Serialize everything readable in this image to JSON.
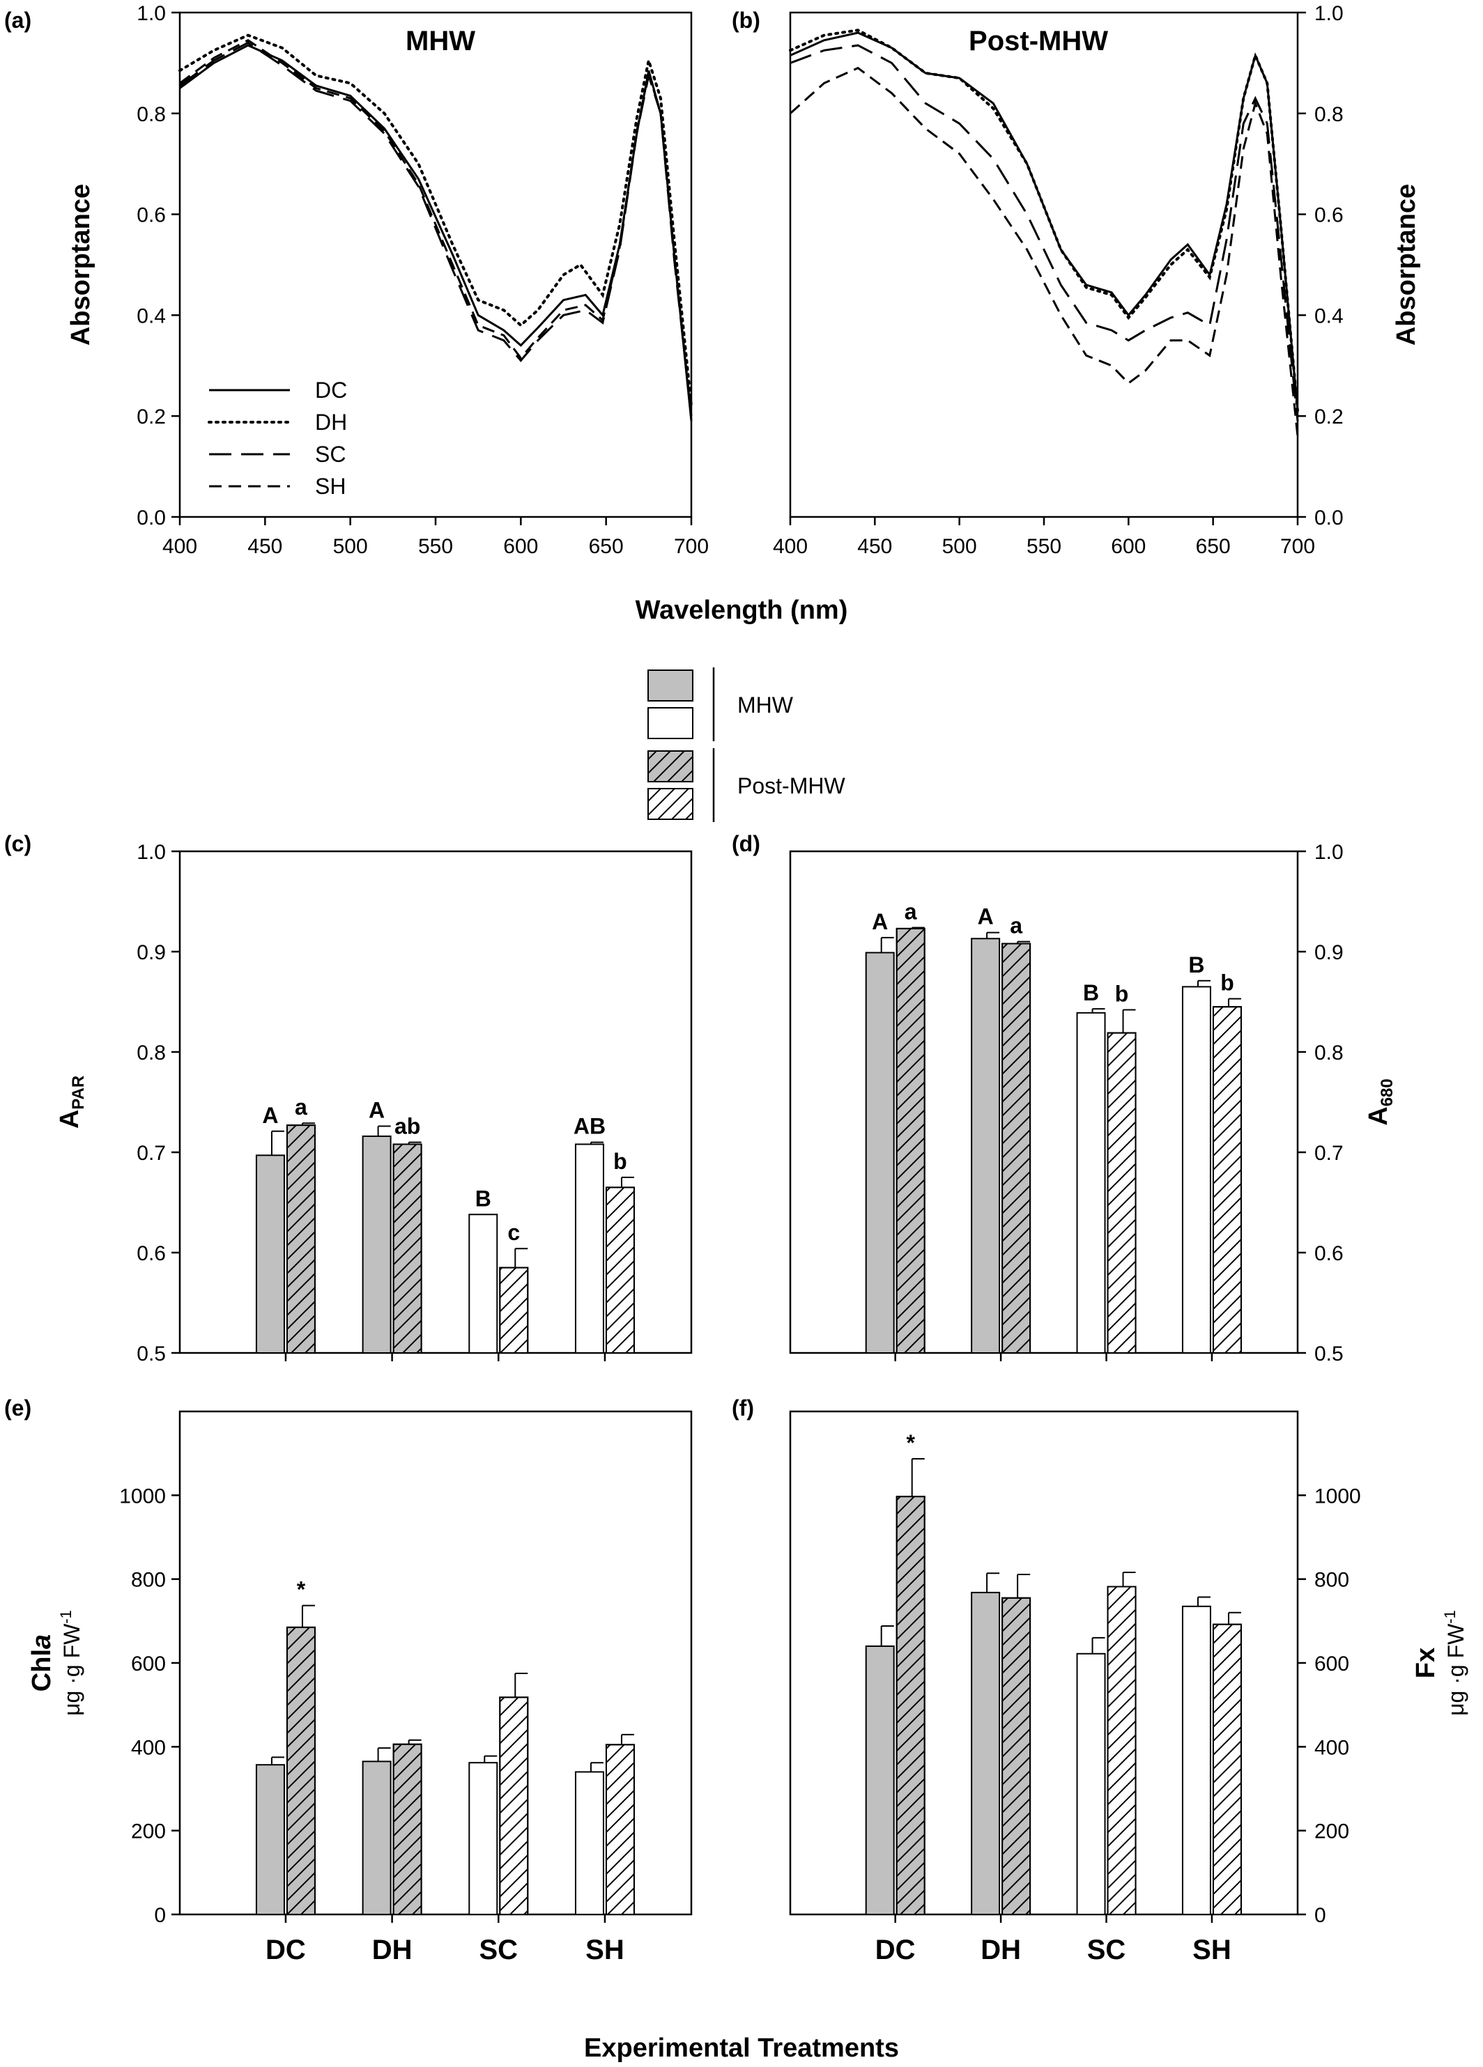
{
  "shared": {
    "spectra_xlabel": "Wavelength (nm)",
    "bars_xlabel": "Experimental Treatments",
    "categories": [
      "DC",
      "DH",
      "SC",
      "SH"
    ]
  },
  "bar_legend": {
    "groups": [
      {
        "label": "MHW",
        "swatches": [
          {
            "fill": "#c0c0c0",
            "hatched": false
          },
          {
            "fill": "#ffffff",
            "hatched": false
          }
        ]
      },
      {
        "label": "Post-MHW",
        "swatches": [
          {
            "fill": "#c0c0c0",
            "hatched": true
          },
          {
            "fill": "#ffffff",
            "hatched": true
          }
        ]
      }
    ]
  },
  "colors": {
    "dry_fill": "#c0c0c0",
    "submerged_fill": "#ffffff",
    "line": "#000000"
  },
  "chart_data": [
    {
      "panel": "(a)",
      "type": "line",
      "title": "MHW",
      "xlabel": "",
      "ylabel": "Absorptance",
      "yaxis_side": "left",
      "xlim": [
        400,
        700
      ],
      "ylim": [
        0,
        1.0
      ],
      "xticks": [
        400,
        450,
        500,
        550,
        600,
        650,
        700
      ],
      "yticks": [
        0.0,
        0.2,
        0.4,
        0.6,
        0.8,
        1.0
      ],
      "legend": {
        "position": "bottom-left",
        "entries": [
          "DC",
          "DH",
          "SC",
          "SH"
        ]
      },
      "series": [
        {
          "name": "DC",
          "dash": "solid",
          "points": [
            [
              400,
              0.85
            ],
            [
              420,
              0.9
            ],
            [
              440,
              0.935
            ],
            [
              460,
              0.905
            ],
            [
              480,
              0.855
            ],
            [
              500,
              0.835
            ],
            [
              520,
              0.77
            ],
            [
              540,
              0.67
            ],
            [
              560,
              0.52
            ],
            [
              575,
              0.4
            ],
            [
              590,
              0.37
            ],
            [
              600,
              0.34
            ],
            [
              610,
              0.375
            ],
            [
              625,
              0.43
            ],
            [
              638,
              0.44
            ],
            [
              648,
              0.4
            ],
            [
              658,
              0.54
            ],
            [
              668,
              0.76
            ],
            [
              675,
              0.885
            ],
            [
              682,
              0.8
            ],
            [
              690,
              0.52
            ],
            [
              700,
              0.19
            ]
          ]
        },
        {
          "name": "DH",
          "dash": "dotted",
          "points": [
            [
              400,
              0.885
            ],
            [
              420,
              0.925
            ],
            [
              440,
              0.955
            ],
            [
              460,
              0.93
            ],
            [
              480,
              0.875
            ],
            [
              500,
              0.86
            ],
            [
              520,
              0.8
            ],
            [
              540,
              0.7
            ],
            [
              560,
              0.54
            ],
            [
              575,
              0.43
            ],
            [
              590,
              0.41
            ],
            [
              600,
              0.38
            ],
            [
              610,
              0.41
            ],
            [
              625,
              0.48
            ],
            [
              635,
              0.5
            ],
            [
              648,
              0.44
            ],
            [
              658,
              0.58
            ],
            [
              668,
              0.79
            ],
            [
              675,
              0.905
            ],
            [
              682,
              0.83
            ],
            [
              690,
              0.55
            ],
            [
              700,
              0.22
            ]
          ]
        },
        {
          "name": "SC",
          "dash": "long-dash",
          "points": [
            [
              400,
              0.855
            ],
            [
              420,
              0.905
            ],
            [
              440,
              0.94
            ],
            [
              460,
              0.895
            ],
            [
              480,
              0.845
            ],
            [
              500,
              0.825
            ],
            [
              520,
              0.76
            ],
            [
              540,
              0.655
            ],
            [
              560,
              0.49
            ],
            [
              575,
              0.37
            ],
            [
              590,
              0.35
            ],
            [
              600,
              0.31
            ],
            [
              610,
              0.35
            ],
            [
              625,
              0.4
            ],
            [
              638,
              0.41
            ],
            [
              648,
              0.385
            ],
            [
              658,
              0.53
            ],
            [
              668,
              0.76
            ],
            [
              675,
              0.875
            ],
            [
              682,
              0.8
            ],
            [
              690,
              0.51
            ],
            [
              700,
              0.2
            ]
          ]
        },
        {
          "name": "SH",
          "dash": "dashed",
          "points": [
            [
              400,
              0.86
            ],
            [
              420,
              0.91
            ],
            [
              440,
              0.945
            ],
            [
              460,
              0.9
            ],
            [
              480,
              0.85
            ],
            [
              500,
              0.83
            ],
            [
              520,
              0.765
            ],
            [
              540,
              0.66
            ],
            [
              560,
              0.5
            ],
            [
              575,
              0.38
            ],
            [
              590,
              0.36
            ],
            [
              600,
              0.315
            ],
            [
              610,
              0.355
            ],
            [
              625,
              0.41
            ],
            [
              638,
              0.42
            ],
            [
              648,
              0.39
            ],
            [
              658,
              0.535
            ],
            [
              668,
              0.765
            ],
            [
              675,
              0.88
            ],
            [
              682,
              0.8
            ],
            [
              690,
              0.52
            ],
            [
              700,
              0.2
            ]
          ]
        }
      ]
    },
    {
      "panel": "(b)",
      "type": "line",
      "title": "Post-MHW",
      "xlabel": "",
      "ylabel": "Absorptance",
      "yaxis_side": "right",
      "xlim": [
        400,
        700
      ],
      "ylim": [
        0,
        1.0
      ],
      "xticks": [
        400,
        450,
        500,
        550,
        600,
        650,
        700
      ],
      "yticks": [
        0.0,
        0.2,
        0.4,
        0.6,
        0.8,
        1.0
      ],
      "series": [
        {
          "name": "DC",
          "dash": "solid",
          "points": [
            [
              400,
              0.915
            ],
            [
              420,
              0.945
            ],
            [
              440,
              0.96
            ],
            [
              460,
              0.93
            ],
            [
              480,
              0.88
            ],
            [
              500,
              0.87
            ],
            [
              520,
              0.82
            ],
            [
              540,
              0.7
            ],
            [
              560,
              0.53
            ],
            [
              575,
              0.46
            ],
            [
              590,
              0.445
            ],
            [
              600,
              0.4
            ],
            [
              610,
              0.44
            ],
            [
              625,
              0.51
            ],
            [
              635,
              0.54
            ],
            [
              648,
              0.48
            ],
            [
              658,
              0.62
            ],
            [
              668,
              0.83
            ],
            [
              675,
              0.915
            ],
            [
              682,
              0.86
            ],
            [
              690,
              0.58
            ],
            [
              700,
              0.21
            ]
          ]
        },
        {
          "name": "DH",
          "dash": "dotted",
          "points": [
            [
              400,
              0.925
            ],
            [
              420,
              0.955
            ],
            [
              440,
              0.965
            ],
            [
              460,
              0.93
            ],
            [
              480,
              0.88
            ],
            [
              500,
              0.87
            ],
            [
              520,
              0.81
            ],
            [
              540,
              0.7
            ],
            [
              560,
              0.53
            ],
            [
              575,
              0.455
            ],
            [
              590,
              0.44
            ],
            [
              600,
              0.395
            ],
            [
              610,
              0.435
            ],
            [
              625,
              0.5
            ],
            [
              635,
              0.53
            ],
            [
              648,
              0.475
            ],
            [
              658,
              0.61
            ],
            [
              668,
              0.83
            ],
            [
              675,
              0.915
            ],
            [
              682,
              0.86
            ],
            [
              690,
              0.58
            ],
            [
              700,
              0.21
            ]
          ]
        },
        {
          "name": "SC",
          "dash": "long-dash",
          "points": [
            [
              400,
              0.9
            ],
            [
              420,
              0.925
            ],
            [
              440,
              0.935
            ],
            [
              460,
              0.9
            ],
            [
              480,
              0.82
            ],
            [
              500,
              0.78
            ],
            [
              520,
              0.71
            ],
            [
              540,
              0.6
            ],
            [
              560,
              0.46
            ],
            [
              575,
              0.385
            ],
            [
              590,
              0.37
            ],
            [
              600,
              0.35
            ],
            [
              610,
              0.37
            ],
            [
              625,
              0.395
            ],
            [
              635,
              0.405
            ],
            [
              648,
              0.38
            ],
            [
              658,
              0.55
            ],
            [
              668,
              0.78
            ],
            [
              675,
              0.83
            ],
            [
              682,
              0.78
            ],
            [
              690,
              0.52
            ],
            [
              700,
              0.19
            ]
          ]
        },
        {
          "name": "SH",
          "dash": "dashed",
          "points": [
            [
              400,
              0.8
            ],
            [
              420,
              0.86
            ],
            [
              440,
              0.89
            ],
            [
              460,
              0.84
            ],
            [
              480,
              0.77
            ],
            [
              500,
              0.72
            ],
            [
              520,
              0.63
            ],
            [
              540,
              0.53
            ],
            [
              560,
              0.4
            ],
            [
              575,
              0.32
            ],
            [
              590,
              0.3
            ],
            [
              600,
              0.265
            ],
            [
              610,
              0.29
            ],
            [
              625,
              0.35
            ],
            [
              635,
              0.35
            ],
            [
              648,
              0.32
            ],
            [
              658,
              0.48
            ],
            [
              668,
              0.73
            ],
            [
              675,
              0.82
            ],
            [
              682,
              0.76
            ],
            [
              690,
              0.48
            ],
            [
              700,
              0.16
            ]
          ]
        }
      ]
    },
    {
      "panel": "(c)",
      "type": "bar",
      "ylabel_main": "A",
      "ylabel_sub": "PAR",
      "ylabel_unit": "",
      "yaxis_side": "left",
      "ylim": [
        0.5,
        1.0
      ],
      "yticks": [
        0.5,
        0.6,
        0.7,
        0.8,
        0.9,
        1.0
      ],
      "categories": [
        "DC",
        "DH",
        "SC",
        "SH"
      ],
      "series": [
        {
          "name": "MHW",
          "values": [
            0.697,
            0.716,
            0.638,
            0.708
          ],
          "errors": [
            0.024,
            0.01,
            0.0,
            0.002
          ],
          "labels": [
            "A",
            "A",
            "B",
            "AB"
          ]
        },
        {
          "name": "Post-MHW",
          "values": [
            0.727,
            0.708,
            0.585,
            0.665
          ],
          "errors": [
            0.002,
            0.002,
            0.019,
            0.01
          ],
          "labels": [
            "a",
            "ab",
            "c",
            "b"
          ]
        }
      ]
    },
    {
      "panel": "(d)",
      "type": "bar",
      "ylabel_main": "A",
      "ylabel_sub": "680",
      "ylabel_unit": "",
      "yaxis_side": "right",
      "ylim": [
        0.5,
        1.0
      ],
      "yticks": [
        0.5,
        0.6,
        0.7,
        0.8,
        0.9,
        1.0
      ],
      "categories": [
        "DC",
        "DH",
        "SC",
        "SH"
      ],
      "series": [
        {
          "name": "MHW",
          "values": [
            0.899,
            0.913,
            0.839,
            0.865
          ],
          "errors": [
            0.015,
            0.006,
            0.004,
            0.006
          ],
          "labels": [
            "A",
            "A",
            "B",
            "B"
          ]
        },
        {
          "name": "Post-MHW",
          "values": [
            0.923,
            0.908,
            0.819,
            0.845
          ],
          "errors": [
            0.001,
            0.002,
            0.023,
            0.008
          ],
          "labels": [
            "a",
            "a",
            "b",
            "b"
          ]
        }
      ]
    },
    {
      "panel": "(e)",
      "type": "bar",
      "ylabel_main": "Chl",
      "ylabel_italic": "a",
      "ylabel_unit": "μg ·g FW",
      "ylabel_unit_sup": "-1",
      "yaxis_side": "left",
      "ylim": [
        0,
        1200
      ],
      "yticks": [
        0,
        200,
        400,
        600,
        800,
        1000
      ],
      "categories": [
        "DC",
        "DH",
        "SC",
        "SH"
      ],
      "series": [
        {
          "name": "MHW",
          "values": [
            357,
            365,
            362,
            340
          ],
          "errors": [
            18,
            32,
            16,
            22
          ],
          "labels": [
            "",
            "",
            "",
            ""
          ]
        },
        {
          "name": "Post-MHW",
          "values": [
            685,
            406,
            518,
            405
          ],
          "errors": [
            52,
            10,
            57,
            24
          ],
          "labels": [
            "*",
            "",
            "",
            ""
          ]
        }
      ]
    },
    {
      "panel": "(f)",
      "type": "bar",
      "ylabel_main": "Fx",
      "ylabel_unit": "μg ·g FW",
      "ylabel_unit_sup": "-1",
      "yaxis_side": "right",
      "ylim": [
        0,
        1200
      ],
      "yticks": [
        0,
        200,
        400,
        600,
        800,
        1000
      ],
      "categories": [
        "DC",
        "DH",
        "SC",
        "SH"
      ],
      "series": [
        {
          "name": "MHW",
          "values": [
            640,
            768,
            622,
            735
          ],
          "errors": [
            48,
            46,
            38,
            22
          ],
          "labels": [
            "",
            "",
            "",
            ""
          ]
        },
        {
          "name": "Post-MHW",
          "values": [
            997,
            755,
            782,
            692
          ],
          "errors": [
            90,
            56,
            34,
            28
          ],
          "labels": [
            "*",
            "",
            "",
            ""
          ]
        }
      ]
    }
  ]
}
